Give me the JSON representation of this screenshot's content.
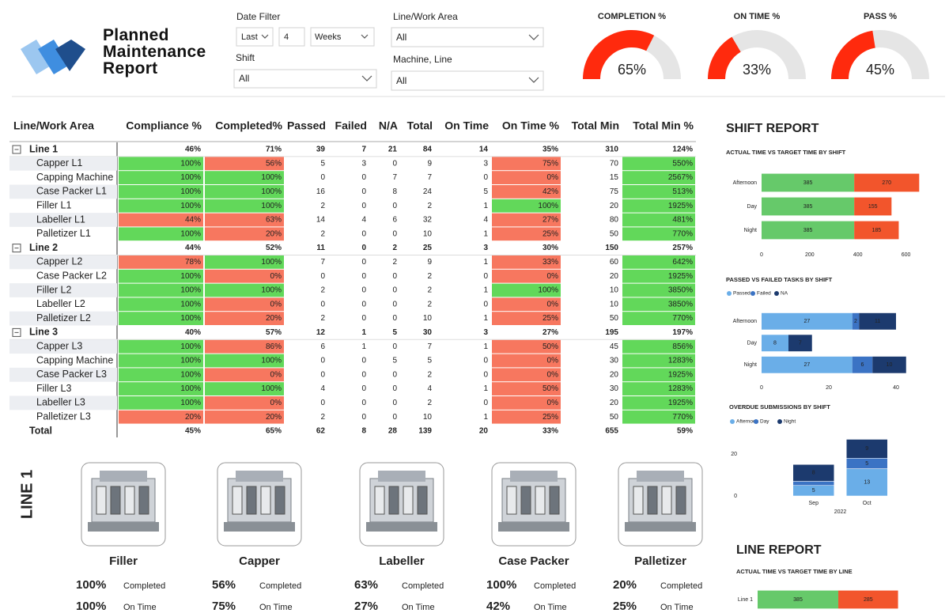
{
  "header": {
    "title": "Planned Maintenance Report"
  },
  "filters": {
    "date_filter": {
      "label": "Date Filter",
      "options": [
        "Last",
        "4",
        "Weeks"
      ]
    },
    "shift": {
      "label": "Shift",
      "value": "All"
    },
    "line_work_area": {
      "label": "Line/Work Area",
      "value": "All"
    },
    "machine_line": {
      "label": "Machine, Line",
      "value": "All"
    }
  },
  "gauges": [
    {
      "title": "COMPLETION %",
      "value": 65,
      "value_label": "65%",
      "range": [
        0,
        100
      ],
      "color": "#ff2a0d",
      "track_color": "#e5e5e5"
    },
    {
      "title": "ON TIME %",
      "value": 33,
      "value_label": "33%",
      "range": [
        0,
        100
      ],
      "color": "#ff2a0d",
      "track_color": "#e5e5e5"
    },
    {
      "title": "PASS %",
      "value": 45,
      "value_label": "45%",
      "range": [
        0,
        100
      ],
      "color": "#ff2a0d",
      "track_color": "#e5e5e5"
    }
  ],
  "table": {
    "columns": [
      "Line/Work Area",
      "Compliance %",
      "Completed%",
      "Passed",
      "Failed",
      "N/A",
      "Total",
      "On Time",
      "On Time %",
      "Total Min",
      "Total Min %"
    ],
    "highlight": {
      "columns": [
        1,
        2,
        8,
        10
      ],
      "good": "#62d85a",
      "bad": "#f7775f"
    },
    "rows": [
      {
        "type": "group",
        "cells": [
          "Line 1",
          "46%",
          "71%",
          "39",
          "7",
          "21",
          "84",
          "14",
          "35%",
          "310",
          "124%"
        ]
      },
      {
        "type": "item",
        "cells": [
          "Capper L1",
          "100%",
          "56%",
          "5",
          "3",
          "0",
          "9",
          "3",
          "75%",
          "70",
          "550%"
        ],
        "status": [
          "good",
          "bad",
          "bad",
          "good"
        ]
      },
      {
        "type": "item",
        "cells": [
          "Capping Machine",
          "100%",
          "100%",
          "0",
          "0",
          "7",
          "7",
          "0",
          "0%",
          "15",
          "2567%"
        ],
        "status": [
          "good",
          "good",
          "bad",
          "good"
        ]
      },
      {
        "type": "item",
        "cells": [
          "Case Packer L1",
          "100%",
          "100%",
          "16",
          "0",
          "8",
          "24",
          "5",
          "42%",
          "75",
          "513%"
        ],
        "status": [
          "good",
          "good",
          "bad",
          "good"
        ]
      },
      {
        "type": "item",
        "cells": [
          "Filler L1",
          "100%",
          "100%",
          "2",
          "0",
          "0",
          "2",
          "1",
          "100%",
          "20",
          "1925%"
        ],
        "status": [
          "good",
          "good",
          "good",
          "good"
        ]
      },
      {
        "type": "item",
        "cells": [
          "Labeller L1",
          "44%",
          "63%",
          "14",
          "4",
          "6",
          "32",
          "4",
          "27%",
          "80",
          "481%"
        ],
        "status": [
          "bad",
          "bad",
          "bad",
          "good"
        ]
      },
      {
        "type": "item",
        "cells": [
          "Palletizer L1",
          "100%",
          "20%",
          "2",
          "0",
          "0",
          "10",
          "1",
          "25%",
          "50",
          "770%"
        ],
        "status": [
          "good",
          "bad",
          "bad",
          "good"
        ]
      },
      {
        "type": "group",
        "cells": [
          "Line 2",
          "44%",
          "52%",
          "11",
          "0",
          "2",
          "25",
          "3",
          "30%",
          "150",
          "257%"
        ]
      },
      {
        "type": "item",
        "cells": [
          "Capper L2",
          "78%",
          "100%",
          "7",
          "0",
          "2",
          "9",
          "1",
          "33%",
          "60",
          "642%"
        ],
        "status": [
          "bad",
          "good",
          "bad",
          "good"
        ]
      },
      {
        "type": "item",
        "cells": [
          "Case Packer L2",
          "100%",
          "0%",
          "0",
          "0",
          "0",
          "2",
          "0",
          "0%",
          "20",
          "1925%"
        ],
        "status": [
          "good",
          "bad",
          "bad",
          "good"
        ]
      },
      {
        "type": "item",
        "cells": [
          "Filler L2",
          "100%",
          "100%",
          "2",
          "0",
          "0",
          "2",
          "1",
          "100%",
          "10",
          "3850%"
        ],
        "status": [
          "good",
          "good",
          "good",
          "good"
        ]
      },
      {
        "type": "item",
        "cells": [
          "Labeller L2",
          "100%",
          "0%",
          "0",
          "0",
          "0",
          "2",
          "0",
          "0%",
          "10",
          "3850%"
        ],
        "status": [
          "good",
          "bad",
          "bad",
          "good"
        ]
      },
      {
        "type": "item",
        "cells": [
          "Palletizer L2",
          "100%",
          "20%",
          "2",
          "0",
          "0",
          "10",
          "1",
          "25%",
          "50",
          "770%"
        ],
        "status": [
          "good",
          "bad",
          "bad",
          "good"
        ]
      },
      {
        "type": "group",
        "cells": [
          "Line 3",
          "40%",
          "57%",
          "12",
          "1",
          "5",
          "30",
          "3",
          "27%",
          "195",
          "197%"
        ]
      },
      {
        "type": "item",
        "cells": [
          "Capper L3",
          "100%",
          "86%",
          "6",
          "1",
          "0",
          "7",
          "1",
          "50%",
          "45",
          "856%"
        ],
        "status": [
          "good",
          "bad",
          "bad",
          "good"
        ]
      },
      {
        "type": "item",
        "cells": [
          "Capping Machine",
          "100%",
          "100%",
          "0",
          "0",
          "5",
          "5",
          "0",
          "0%",
          "30",
          "1283%"
        ],
        "status": [
          "good",
          "good",
          "bad",
          "good"
        ]
      },
      {
        "type": "item",
        "cells": [
          "Case Packer L3",
          "100%",
          "0%",
          "0",
          "0",
          "0",
          "2",
          "0",
          "0%",
          "20",
          "1925%"
        ],
        "status": [
          "good",
          "bad",
          "bad",
          "good"
        ]
      },
      {
        "type": "item",
        "cells": [
          "Filler L3",
          "100%",
          "100%",
          "4",
          "0",
          "0",
          "4",
          "1",
          "50%",
          "30",
          "1283%"
        ],
        "status": [
          "good",
          "good",
          "bad",
          "good"
        ]
      },
      {
        "type": "item",
        "cells": [
          "Labeller L3",
          "100%",
          "0%",
          "0",
          "0",
          "0",
          "2",
          "0",
          "0%",
          "20",
          "1925%"
        ],
        "status": [
          "good",
          "bad",
          "bad",
          "good"
        ]
      },
      {
        "type": "item",
        "cells": [
          "Palletizer L3",
          "20%",
          "20%",
          "2",
          "0",
          "0",
          "10",
          "1",
          "25%",
          "50",
          "770%"
        ],
        "status": [
          "bad",
          "bad",
          "bad",
          "good"
        ]
      },
      {
        "type": "total",
        "cells": [
          "Total",
          "45%",
          "65%",
          "62",
          "8",
          "28",
          "139",
          "20",
          "33%",
          "655",
          "59%"
        ]
      }
    ]
  },
  "cards": {
    "section_label": "LINE 1",
    "metric_labels": [
      "Completed",
      "On Time"
    ],
    "status_colors": {
      "good": "#3aa53a",
      "bad": "#e0352b"
    },
    "items": [
      {
        "name": "Filler",
        "stats": [
          {
            "value": "100%",
            "status": "good"
          },
          {
            "value": "100%",
            "status": "good"
          }
        ]
      },
      {
        "name": "Capper",
        "stats": [
          {
            "value": "56%",
            "status": "bad"
          },
          {
            "value": "75%",
            "status": "bad"
          }
        ]
      },
      {
        "name": "Labeller",
        "stats": [
          {
            "value": "63%",
            "status": "bad"
          },
          {
            "value": "27%",
            "status": "bad"
          }
        ]
      },
      {
        "name": "Case Packer",
        "stats": [
          {
            "value": "100%",
            "status": "good"
          },
          {
            "value": "42%",
            "status": "bad"
          }
        ]
      },
      {
        "name": "Palletizer",
        "stats": [
          {
            "value": "20%",
            "status": "bad"
          },
          {
            "value": "25%",
            "status": "bad"
          }
        ]
      }
    ]
  },
  "shift_report": {
    "title": "SHIFT REPORT",
    "charts": [
      {
        "type": "bar",
        "orientation": "horizontal",
        "stacked": true,
        "title": "ACTUAL TIME VS TARGET TIME BY SHIFT",
        "categories": [
          "Afternoon",
          "Day",
          "Night"
        ],
        "series": [
          {
            "color": "#66c96a",
            "values": [
              385,
              385,
              385
            ]
          },
          {
            "color": "#f2552c",
            "values": [
              270,
              155,
              185
            ]
          }
        ],
        "xlim": [
          0,
          700
        ],
        "xticks": [
          0,
          200,
          400,
          600
        ]
      },
      {
        "type": "bar",
        "orientation": "horizontal",
        "stacked": true,
        "title": "PASSED VS FAILED TASKS BY SHIFT",
        "categories": [
          "Afternoon",
          "Day",
          "Night"
        ],
        "series": [
          {
            "name": "Passed",
            "color": "#6aaee8",
            "values": [
              27,
              8,
              27
            ]
          },
          {
            "name": "Failed",
            "color": "#3b73c4",
            "values": [
              2,
              0,
              6
            ]
          },
          {
            "name": "NA",
            "color": "#1c3a6e",
            "values": [
              11,
              7,
              10
            ]
          }
        ],
        "xlim": [
          0,
          50
        ],
        "xticks": [
          0,
          20,
          40
        ]
      },
      {
        "type": "bar",
        "orientation": "vertical",
        "stacked": true,
        "title": "OVERDUE SUBMISSIONS BY SHIFT",
        "categories": [
          "Sep",
          "Oct"
        ],
        "x_label": "2022",
        "series": [
          {
            "name": "Afternoon",
            "color": "#6aaee8",
            "values": [
              5,
              13
            ]
          },
          {
            "name": "Day",
            "color": "#3b73c4",
            "values": [
              2,
              5
            ]
          },
          {
            "name": "Night",
            "color": "#1c3a6e",
            "values": [
              8,
              9
            ]
          }
        ],
        "ylim": [
          0,
          30
        ],
        "yticks": [
          0,
          20
        ]
      }
    ]
  },
  "line_report": {
    "title": "LINE REPORT",
    "charts": [
      {
        "type": "bar",
        "orientation": "horizontal",
        "stacked": true,
        "title": "ACTUAL TIME VS TARGET TIME BY LINE",
        "categories": [
          "Line 1"
        ],
        "series": [
          {
            "color": "#66c96a",
            "values": [
              385
            ]
          },
          {
            "color": "#f2552c",
            "values": [
              285
            ]
          }
        ],
        "xlim": [
          0,
          800
        ]
      }
    ]
  }
}
